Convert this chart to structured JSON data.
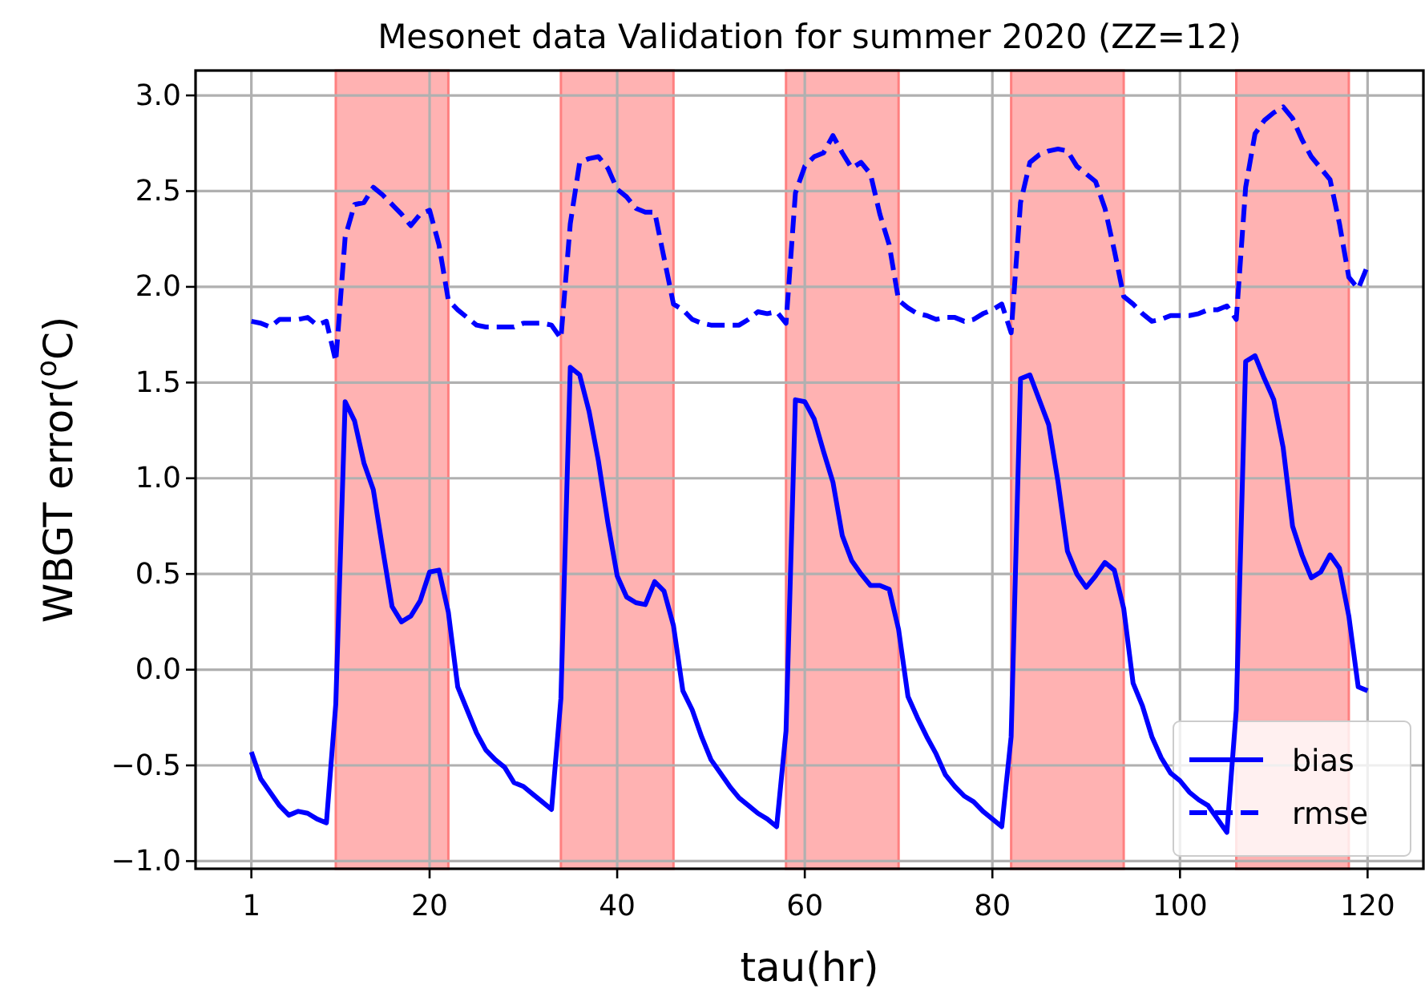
{
  "chart_data": {
    "type": "line",
    "title": "Mesonet data Validation for summer 2020 (ZZ=12)",
    "xlabel": "tau(hr)",
    "ylabel": "WBGT error($^{o}$C)",
    "x": [
      1,
      2,
      3,
      4,
      5,
      6,
      7,
      8,
      9,
      10,
      11,
      12,
      13,
      14,
      15,
      16,
      17,
      18,
      19,
      20,
      21,
      22,
      23,
      24,
      25,
      26,
      27,
      28,
      29,
      30,
      31,
      32,
      33,
      34,
      35,
      36,
      37,
      38,
      39,
      40,
      41,
      42,
      43,
      44,
      45,
      46,
      47,
      48,
      49,
      50,
      51,
      52,
      53,
      54,
      55,
      56,
      57,
      58,
      59,
      60,
      61,
      62,
      63,
      64,
      65,
      66,
      67,
      68,
      69,
      70,
      71,
      72,
      73,
      74,
      75,
      76,
      77,
      78,
      79,
      80,
      81,
      82,
      83,
      84,
      85,
      86,
      87,
      88,
      89,
      90,
      91,
      92,
      93,
      94,
      95,
      96,
      97,
      98,
      99,
      100,
      101,
      102,
      103,
      104,
      105,
      106,
      107,
      108,
      109,
      110,
      111,
      112,
      113,
      114,
      115,
      116,
      117,
      118,
      119,
      120
    ],
    "series": [
      {
        "name": "bias",
        "color": "#0000ff",
        "line_style": "solid",
        "values": [
          -0.43,
          -0.57,
          -0.64,
          -0.71,
          -0.76,
          -0.74,
          -0.75,
          -0.78,
          -0.8,
          -0.18,
          1.4,
          1.3,
          1.08,
          0.94,
          0.63,
          0.33,
          0.25,
          0.28,
          0.36,
          0.51,
          0.52,
          0.3,
          -0.09,
          -0.21,
          -0.33,
          -0.42,
          -0.47,
          -0.51,
          -0.59,
          -0.61,
          -0.65,
          -0.69,
          -0.73,
          -0.15,
          1.58,
          1.54,
          1.35,
          1.09,
          0.77,
          0.49,
          0.38,
          0.35,
          0.34,
          0.46,
          0.41,
          0.23,
          -0.11,
          -0.21,
          -0.35,
          -0.47,
          -0.54,
          -0.61,
          -0.67,
          -0.71,
          -0.75,
          -0.78,
          -0.82,
          -0.32,
          1.41,
          1.4,
          1.31,
          1.14,
          0.98,
          0.7,
          0.57,
          0.5,
          0.44,
          0.44,
          0.42,
          0.21,
          -0.14,
          -0.25,
          -0.35,
          -0.44,
          -0.55,
          -0.61,
          -0.66,
          -0.69,
          -0.74,
          -0.78,
          -0.82,
          -0.35,
          1.52,
          1.54,
          1.41,
          1.28,
          0.98,
          0.62,
          0.5,
          0.43,
          0.49,
          0.56,
          0.52,
          0.32,
          -0.07,
          -0.19,
          -0.35,
          -0.46,
          -0.54,
          -0.58,
          -0.64,
          -0.68,
          -0.71,
          -0.78,
          -0.85,
          -0.21,
          1.61,
          1.64,
          1.52,
          1.41,
          1.16,
          0.75,
          0.6,
          0.48,
          0.51,
          0.6,
          0.53,
          0.28,
          -0.09,
          -0.11
        ]
      },
      {
        "name": "rmse",
        "color": "#0000ff",
        "line_style": "dashed",
        "values": [
          1.82,
          1.81,
          1.79,
          1.83,
          1.83,
          1.83,
          1.84,
          1.8,
          1.82,
          1.61,
          2.26,
          2.43,
          2.44,
          2.52,
          2.48,
          2.43,
          2.38,
          2.32,
          2.38,
          2.4,
          2.22,
          1.93,
          1.88,
          1.84,
          1.8,
          1.79,
          1.79,
          1.79,
          1.79,
          1.81,
          1.81,
          1.81,
          1.8,
          1.73,
          2.33,
          2.65,
          2.67,
          2.68,
          2.62,
          2.51,
          2.47,
          2.41,
          2.39,
          2.39,
          2.15,
          1.91,
          1.88,
          1.83,
          1.81,
          1.8,
          1.8,
          1.8,
          1.8,
          1.83,
          1.87,
          1.86,
          1.87,
          1.81,
          2.49,
          2.63,
          2.68,
          2.7,
          2.79,
          2.7,
          2.62,
          2.65,
          2.59,
          2.38,
          2.22,
          1.93,
          1.89,
          1.86,
          1.85,
          1.83,
          1.84,
          1.84,
          1.82,
          1.83,
          1.86,
          1.88,
          1.91,
          1.76,
          2.44,
          2.65,
          2.69,
          2.71,
          2.72,
          2.71,
          2.63,
          2.59,
          2.55,
          2.41,
          2.19,
          1.95,
          1.91,
          1.86,
          1.82,
          1.83,
          1.85,
          1.85,
          1.85,
          1.86,
          1.88,
          1.88,
          1.9,
          1.83,
          2.52,
          2.8,
          2.87,
          2.91,
          2.94,
          2.88,
          2.77,
          2.68,
          2.62,
          2.56,
          2.33,
          2.05,
          1.99,
          2.11
        ]
      }
    ],
    "bands": [
      {
        "axis": "x",
        "from": 10,
        "to": 22,
        "color": "#ffb2b2"
      },
      {
        "axis": "x",
        "from": 34,
        "to": 46,
        "color": "#ffb2b2"
      },
      {
        "axis": "x",
        "from": 58,
        "to": 70,
        "color": "#ffb2b2"
      },
      {
        "axis": "x",
        "from": 82,
        "to": 94,
        "color": "#ffb2b2"
      },
      {
        "axis": "x",
        "from": 106,
        "to": 118,
        "color": "#ffb2b2"
      }
    ],
    "xlim": [
      -4.95,
      125.95
    ],
    "xticks": [
      1,
      20,
      40,
      60,
      80,
      100,
      120
    ],
    "ylim": [
      -1.04,
      3.13
    ],
    "yticks": [
      {
        "value": -1,
        "label": "−1.0"
      },
      {
        "value": -0.5,
        "label": "−0.5"
      },
      {
        "value": 0,
        "label": "0.0"
      },
      {
        "value": 0.5,
        "label": "0.5"
      },
      {
        "value": 1,
        "label": "1.0"
      },
      {
        "value": 1.5,
        "label": "1.5"
      },
      {
        "value": 2,
        "label": "2.0"
      },
      {
        "value": 2.5,
        "label": "2.5"
      },
      {
        "value": 3,
        "label": "3.0"
      }
    ],
    "grid": true,
    "legend": "bottom right"
  }
}
